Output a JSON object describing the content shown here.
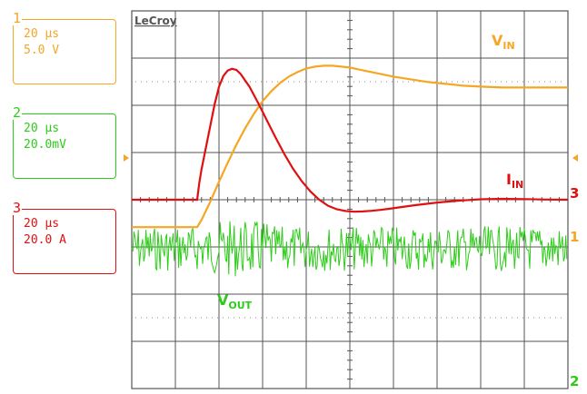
{
  "scope": {
    "brand": "LeCroy"
  },
  "channels": [
    {
      "number": "1",
      "timebase": "20 µs",
      "scale": "5.0 V",
      "color": "#f5a623"
    },
    {
      "number": "2",
      "timebase": "20 µs",
      "scale": "20.0mV",
      "color": "#2ecc1a"
    },
    {
      "number": "3",
      "timebase": "20 µs",
      "scale": "20.0 A",
      "color": "#e01010"
    }
  ],
  "markers": {
    "ch1": "1",
    "ch2": "2",
    "ch3": "3"
  },
  "chart_data": {
    "type": "line",
    "grid": true,
    "x_divisions": 10,
    "y_divisions": 8,
    "x_unit_per_div": "20 µs",
    "series": [
      {
        "name": "VIN",
        "label_main": "V",
        "label_sub": "IN",
        "channel": "1",
        "color": "#f5a623",
        "unit": "V",
        "x_us": [
          0,
          30,
          32,
          36,
          40,
          44,
          48,
          52,
          56,
          60,
          64,
          68,
          72,
          76,
          80,
          84,
          88,
          90,
          92,
          96,
          100,
          104,
          108,
          112,
          116,
          120,
          128,
          136,
          144,
          152,
          160,
          170,
          180,
          190,
          200
        ],
        "y": [
          0,
          0,
          0.8,
          2.8,
          5.0,
          7.1,
          9.1,
          10.9,
          12.5,
          13.9,
          15.0,
          15.9,
          16.6,
          17.1,
          17.5,
          17.7,
          17.8,
          17.8,
          17.8,
          17.7,
          17.6,
          17.4,
          17.2,
          17.0,
          16.8,
          16.6,
          16.3,
          16.0,
          15.8,
          15.6,
          15.5,
          15.4,
          15.4,
          15.4,
          15.4
        ]
      },
      {
        "name": "IIN",
        "label_main": "I",
        "label_sub": "IN",
        "channel": "3",
        "color": "#e01010",
        "unit": "A",
        "x_us": [
          0,
          30,
          31,
          32,
          34,
          36,
          38,
          40,
          42,
          44,
          46,
          48,
          50,
          54,
          58,
          62,
          66,
          70,
          74,
          78,
          82,
          86,
          90,
          94,
          98,
          102,
          106,
          110,
          114,
          118,
          122,
          130,
          140,
          150,
          160,
          170,
          180,
          190,
          200
        ],
        "y": [
          0,
          0,
          8,
          14,
          24,
          34,
          44,
          52,
          57,
          59.5,
          60.3,
          59.8,
          57.8,
          52,
          44.5,
          36.5,
          28.5,
          21,
          14.2,
          8.5,
          3.7,
          0,
          -2.8,
          -4.4,
          -5.2,
          -5.5,
          -5.4,
          -5.1,
          -4.7,
          -4.2,
          -3.6,
          -2.5,
          -1.3,
          -0.4,
          0.2,
          0.4,
          0.3,
          0.1,
          0
        ]
      },
      {
        "name": "VOUT",
        "label_main": "V",
        "label_sub": "OUT",
        "channel": "2",
        "color": "#2ecc1a",
        "unit": "mV",
        "noise_amplitude_mv": 10
      }
    ]
  }
}
